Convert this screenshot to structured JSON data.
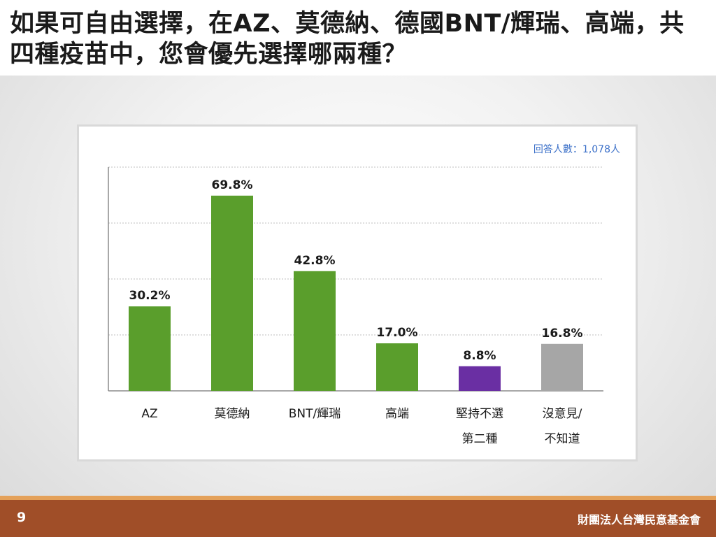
{
  "slide": {
    "title": "如果可自由選擇，在AZ、莫德納、德國BNT/輝瑞、高端，共四種疫苗中，您會優先選擇哪兩種？",
    "page_number": "9",
    "organization": "財團法人台灣民意基金會"
  },
  "chart_data": {
    "type": "bar",
    "title": "",
    "xlabel": "",
    "ylabel": "",
    "respondents_label": "回答人數：1,078人",
    "categories": [
      "AZ",
      "莫德納",
      "BNT/輝瑞",
      "高端",
      "堅持不選\n第二種",
      "沒意見/\n不知道"
    ],
    "values": [
      30.2,
      69.8,
      42.8,
      17.0,
      8.8,
      16.8
    ],
    "value_labels": [
      "30.2%",
      "69.8%",
      "42.8%",
      "17.0%",
      "8.8%",
      "16.8%"
    ],
    "colors": [
      "#5a9e2c",
      "#5a9e2c",
      "#5a9e2c",
      "#5a9e2c",
      "#6a2fa3",
      "#a6a6a6"
    ],
    "ylim": [
      0,
      80
    ],
    "grid": true,
    "legend": "none"
  }
}
